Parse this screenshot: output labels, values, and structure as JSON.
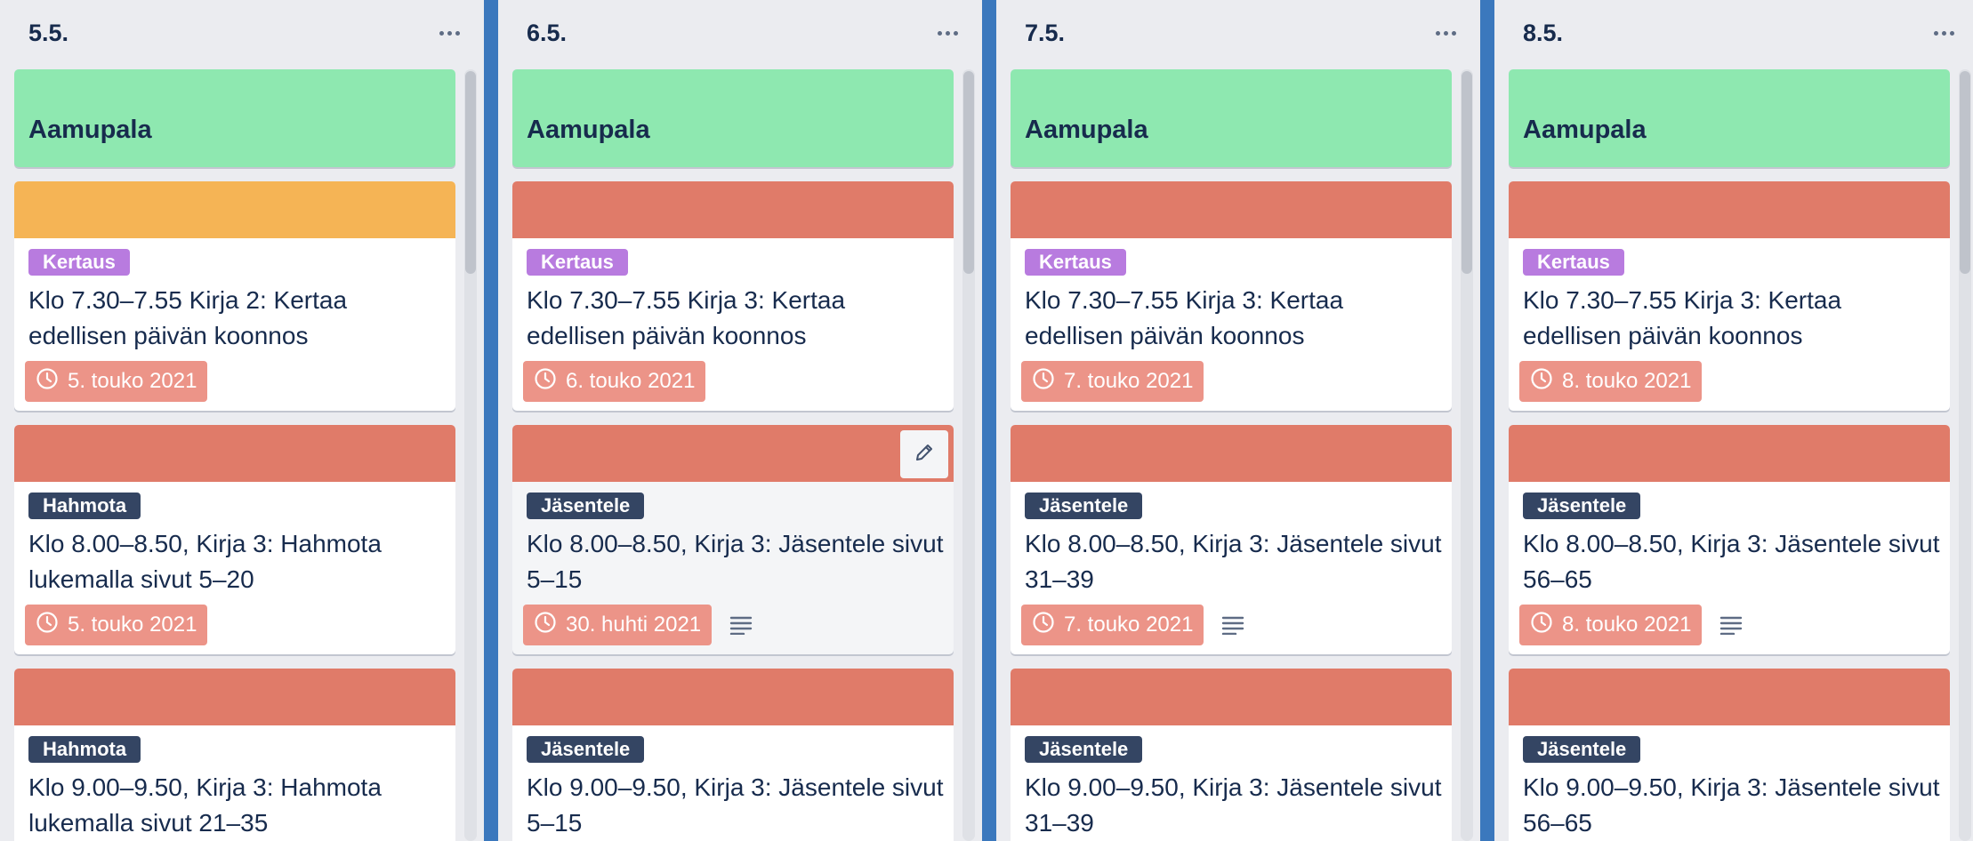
{
  "colors": {
    "board_background": "#3b78bd",
    "list_background": "#ebecf0",
    "cover_green": "#8ee8b0",
    "cover_orange": "#f5b455",
    "cover_red": "#e07b69",
    "label_purple": "#b87bdf",
    "label_navy": "#344563",
    "due_badge": "#ec9488"
  },
  "lists": [
    {
      "title": "5.5.",
      "menu_icon": "ellipsis-icon",
      "cover_card": {
        "title": "Aamupala"
      },
      "cards": [
        {
          "cover": "orange",
          "label": "Kertaus",
          "label_color": "purple",
          "title": "Klo 7.30–7.55 Kirja 2: Kertaa edellisen päivän koonnos",
          "due": "5. touko 2021",
          "has_description": false
        },
        {
          "cover": "red",
          "label": "Hahmota",
          "label_color": "navy",
          "title": "Klo 8.00–8.50, Kirja 3: Hahmota lukemalla sivut 5–20",
          "due": "5. touko 2021",
          "has_description": false
        },
        {
          "cover": "red",
          "label": "Hahmota",
          "label_color": "navy",
          "title": "Klo 9.00–9.50, Kirja 3: Hahmota lukemalla sivut 21–35",
          "due": "",
          "has_description": false
        }
      ]
    },
    {
      "title": "6.5.",
      "menu_icon": "ellipsis-icon",
      "cover_card": {
        "title": "Aamupala"
      },
      "cards": [
        {
          "cover": "red",
          "label": "Kertaus",
          "label_color": "purple",
          "title": "Klo 7.30–7.55 Kirja 3: Kertaa edellisen päivän koonnos",
          "due": "6. touko 2021",
          "has_description": false
        },
        {
          "cover": "red",
          "label": "Jäsentele",
          "label_color": "navy",
          "title": "Klo 8.00–8.50, Kirja 3: Jäsentele sivut 5–15",
          "due": "30. huhti 2021",
          "has_description": true,
          "hovered": true
        },
        {
          "cover": "red",
          "label": "Jäsentele",
          "label_color": "navy",
          "title": "Klo 9.00–9.50, Kirja 3: Jäsentele sivut 5–15",
          "due": "",
          "has_description": false
        }
      ]
    },
    {
      "title": "7.5.",
      "menu_icon": "ellipsis-icon",
      "cover_card": {
        "title": "Aamupala"
      },
      "cards": [
        {
          "cover": "red",
          "label": "Kertaus",
          "label_color": "purple",
          "title": "Klo 7.30–7.55 Kirja 3: Kertaa edellisen päivän koonnos",
          "due": "7. touko 2021",
          "has_description": false
        },
        {
          "cover": "red",
          "label": "Jäsentele",
          "label_color": "navy",
          "title": "Klo 8.00–8.50, Kirja 3: Jäsentele sivut 31–39",
          "due": "7. touko 2021",
          "has_description": true
        },
        {
          "cover": "red",
          "label": "Jäsentele",
          "label_color": "navy",
          "title": "Klo 9.00–9.50, Kirja 3: Jäsentele sivut 31–39",
          "due": "",
          "has_description": false
        }
      ]
    },
    {
      "title": "8.5.",
      "menu_icon": "ellipsis-icon",
      "cover_card": {
        "title": "Aamupala"
      },
      "cards": [
        {
          "cover": "red",
          "label": "Kertaus",
          "label_color": "purple",
          "title": "Klo 7.30–7.55 Kirja 3: Kertaa edellisen päivän koonnos",
          "due": "8. touko 2021",
          "has_description": false
        },
        {
          "cover": "red",
          "label": "Jäsentele",
          "label_color": "navy",
          "title": "Klo 8.00–8.50, Kirja 3: Jäsentele sivut 56–65",
          "due": "8. touko 2021",
          "has_description": true
        },
        {
          "cover": "red",
          "label": "Jäsentele",
          "label_color": "navy",
          "title": "Klo 9.00–9.50, Kirja 3: Jäsentele sivut 56–65",
          "due": "",
          "has_description": false
        }
      ]
    }
  ]
}
